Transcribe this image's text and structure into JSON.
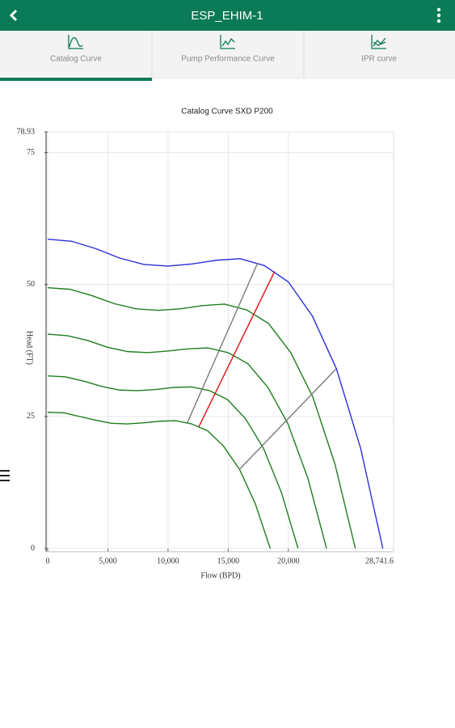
{
  "header": {
    "title": "ESP_EHIM-1"
  },
  "tabs": [
    "Catalog Curve",
    "Pump Performance Curve",
    "IPR curve"
  ],
  "chart_data": {
    "type": "line",
    "title": "Catalog Curve SXD P200",
    "x_label": "Flow (BPD)",
    "y_label": "Head (FT)",
    "xlim": [
      0,
      28741.6
    ],
    "ylim": [
      0,
      78.93
    ],
    "xticks": [
      0,
      {
        "value": 5000,
        "label": "5,000"
      },
      {
        "value": 10000,
        "label": "10,000"
      },
      {
        "value": 15000,
        "label": "15,000"
      },
      {
        "value": 20000,
        "label": "20,000"
      },
      {
        "value": 28741.6,
        "label": "28,741.6"
      }
    ],
    "yticks": [
      0,
      25,
      50,
      75,
      78.93
    ],
    "grid": true,
    "series": [
      {
        "color": "#2b2fd9",
        "x": [
          0,
          2000,
          4000,
          6000,
          8000,
          10000,
          12000,
          14000,
          16000,
          18000,
          20000,
          22000,
          24000,
          26000,
          27850
        ],
        "values": [
          58.6,
          58.2,
          56.8,
          55.0,
          53.8,
          53.5,
          53.9,
          54.6,
          54.9,
          53.6,
          50.5,
          44,
          34,
          19,
          0
        ]
      },
      {
        "color": "#1e7d1e",
        "x": [
          0,
          1836,
          3672,
          5508,
          7344,
          9180,
          11016,
          12852,
          14688,
          16524,
          18360,
          20196,
          22032,
          23868,
          25566
        ],
        "values": [
          49.4,
          49.1,
          47.9,
          46.4,
          45.4,
          45.1,
          45.4,
          46.0,
          46.3,
          45.2,
          42.6,
          37.1,
          28.7,
          16.0,
          0
        ]
      },
      {
        "color": "#1e7d1e",
        "x": [
          0,
          1664,
          3328,
          4992,
          6656,
          8320,
          9984,
          11648,
          13312,
          14976,
          16640,
          18304,
          19968,
          21632,
          23171
        ],
        "values": [
          40.6,
          40.3,
          39.4,
          38.1,
          37.3,
          37.1,
          37.4,
          37.8,
          38.0,
          37.1,
          35.0,
          30.5,
          23.6,
          13.2,
          0
        ]
      },
      {
        "color": "#1e7d1e",
        "x": [
          0,
          1494,
          2988,
          4482,
          5976,
          7470,
          8964,
          10458,
          11952,
          13446,
          14940,
          16434,
          17928,
          19422,
          20804
        ],
        "values": [
          32.7,
          32.5,
          31.7,
          30.7,
          30.0,
          29.9,
          30.1,
          30.5,
          30.6,
          29.9,
          28.2,
          24.6,
          19.0,
          10.6,
          0
        ]
      },
      {
        "color": "#1e7d1e",
        "x": [
          0,
          1328,
          2656,
          3984,
          5312,
          6640,
          7968,
          9296,
          10624,
          11952,
          13280,
          14608,
          15936,
          17264,
          18492
        ],
        "values": [
          25.8,
          25.7,
          25.0,
          24.3,
          23.7,
          23.6,
          23.8,
          24.1,
          24.2,
          23.6,
          22.3,
          19.4,
          15.0,
          8.4,
          0
        ]
      },
      {
        "color": "#7a7a7a",
        "x": [
          11600,
          17450
        ],
        "values": [
          23.8,
          54.1
        ]
      },
      {
        "color": "#e01010",
        "x": [
          12550,
          18860
        ],
        "values": [
          23.0,
          52.5
        ]
      },
      {
        "color": "#7a7a7a",
        "x": [
          15900,
          23960
        ],
        "values": [
          14.9,
          34.0
        ]
      }
    ]
  }
}
